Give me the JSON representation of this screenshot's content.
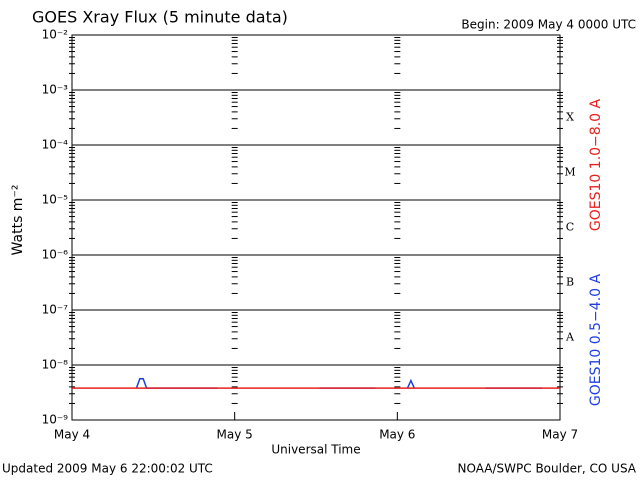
{
  "chart_data": {
    "type": "line",
    "title": "GOES Xray Flux (5 minute data)",
    "subtitle": "Begin:  2009 May 4 0000 UTC",
    "y_label": "Watts m⁻²",
    "x_label": "Universal Time",
    "footer_left": "Updated 2009 May  6 22:00:02 UTC",
    "footer_right": "NOAA/SWPC Boulder, CO USA",
    "flare_classes": [
      "A",
      "B",
      "C",
      "M",
      "X"
    ],
    "log_y": true,
    "grid": true,
    "xlim": [
      0,
      72
    ],
    "xticks": [
      {
        "value": 0,
        "label": "May 4"
      },
      {
        "value": 24,
        "label": "May 5"
      },
      {
        "value": 48,
        "label": "May 6"
      },
      {
        "value": 72,
        "label": "May 7"
      }
    ],
    "ylim": [
      1e-09,
      0.01
    ],
    "yticks": [
      {
        "value": 1e-09,
        "label": "10⁻⁹"
      },
      {
        "value": 1e-08,
        "label": "10⁻⁸"
      },
      {
        "value": 1e-07,
        "label": "10⁻⁷"
      },
      {
        "value": 1e-06,
        "label": "10⁻⁶"
      },
      {
        "value": 1e-05,
        "label": "10⁻⁵"
      },
      {
        "value": 0.0001,
        "label": "10⁻⁴"
      },
      {
        "value": 0.001,
        "label": "10⁻³"
      },
      {
        "value": 0.01,
        "label": "10⁻²"
      }
    ],
    "x": [
      0,
      4,
      8,
      9.5,
      10,
      10.5,
      11,
      12,
      14,
      16,
      18,
      20,
      21.5,
      24,
      28,
      32,
      36.5,
      38,
      40,
      42,
      44.8,
      48,
      49.5,
      50,
      50.5,
      52,
      56,
      60,
      61,
      64,
      67,
      69.4,
      72
    ],
    "series": [
      {
        "name": "GOES10 1.0−8.0 A",
        "color": "#e8211f",
        "values": [
          3.8e-09,
          3.8e-09,
          3.8e-09,
          3.8e-09,
          3.8e-09,
          3.8e-09,
          3.8e-09,
          3.8e-09,
          3.8e-09,
          3.8e-09,
          3.8e-09,
          3.8e-09,
          3.8e-09,
          3.8e-09,
          3.8e-09,
          3.8e-09,
          3.8e-09,
          3.8e-09,
          3.8e-09,
          3.8e-09,
          3.8e-09,
          3.8e-09,
          3.8e-09,
          3.8e-09,
          3.8e-09,
          3.8e-09,
          3.8e-09,
          3.8e-09,
          3.8e-09,
          3.8e-09,
          3.8e-09,
          3.8e-09,
          3.8e-09
        ]
      },
      {
        "name": "GOES10 0.5−4.0 A",
        "color": "#1f3fe0",
        "values": [
          null,
          null,
          null,
          3.8e-09,
          5.6e-09,
          5.6e-09,
          3.8e-09,
          3.8e-09,
          3.8e-09,
          3.8e-09,
          3.8e-09,
          3.8e-09,
          3.8e-09,
          null,
          null,
          null,
          3.8e-09,
          3.8e-09,
          3.8e-09,
          3.8e-09,
          3.8e-09,
          null,
          3.8e-09,
          5.2e-09,
          3.8e-09,
          null,
          null,
          null,
          3.8e-09,
          3.8e-09,
          3.8e-09,
          3.8e-09,
          null
        ]
      }
    ]
  }
}
